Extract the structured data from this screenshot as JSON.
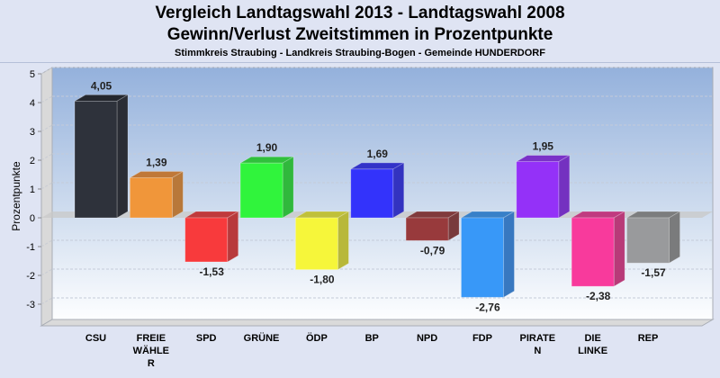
{
  "chart_data": {
    "type": "bar",
    "title": "Vergleich Landtagswahl 2013 - Landtagswahl 2008",
    "subtitle": "Gewinn/Verlust Zweitstimmen in Prozentpunkte",
    "subtitle2": "Stimmkreis Straubing - Landkreis Straubing-Bogen - Gemeinde HUNDERDORF",
    "xlabel": "",
    "ylabel": "Prozentpunkte",
    "ylim": [
      -3.75,
      5
    ],
    "yticks": [
      "5",
      "4",
      "3",
      "2",
      "1",
      "0",
      "-1",
      "-2",
      "-3"
    ],
    "ytick_values": [
      5,
      4,
      3,
      2,
      1,
      0,
      -1,
      -2,
      -3
    ],
    "grid": true,
    "categories": [
      "CSU",
      "FREIE WÄHLER",
      "SPD",
      "GRÜNE",
      "ÖDP",
      "BP",
      "NPD",
      "FDP",
      "PIRATEN",
      "DIE LINKE",
      "REP"
    ],
    "category_display": [
      [
        "CSU"
      ],
      [
        "FREIE",
        "WÄHLE",
        "R"
      ],
      [
        "SPD"
      ],
      [
        "GRÜNE"
      ],
      [
        "ÖDP"
      ],
      [
        "BP"
      ],
      [
        "NPD"
      ],
      [
        "FDP"
      ],
      [
        "PIRATE",
        "N"
      ],
      [
        "DIE",
        "LINKE"
      ],
      [
        "REP"
      ]
    ],
    "values": [
      4.05,
      1.39,
      -1.53,
      1.9,
      -1.8,
      1.69,
      -0.79,
      -2.76,
      1.95,
      -2.38,
      -1.57
    ],
    "value_labels": [
      "4,05",
      "1,39",
      "-1,53",
      "1,90",
      "-1,80",
      "1,69",
      "-0,79",
      "-2,76",
      "1,95",
      "-2,38",
      "-1,57"
    ],
    "colors": [
      "#2e323b",
      "#f0963a",
      "#f83a3c",
      "#30f43c",
      "#f6f63a",
      "#3333fb",
      "#983a3c",
      "#3898f8",
      "#9431f8",
      "#f83a9c",
      "#999a9c"
    ],
    "side_colors": [
      "#2a2d35",
      "#b8783a",
      "#b83a3c",
      "#30b83c",
      "#b8b83a",
      "#3333c0",
      "#783a3c",
      "#3878c0",
      "#7431c0",
      "#b83a78",
      "#7a7b7c"
    ],
    "top_colors": [
      "#24272e",
      "#c07838",
      "#c03a3c",
      "#30c03c",
      "#c0c03a",
      "#3333c8",
      "#803a3c",
      "#3880c8",
      "#7a31c8",
      "#c03a80",
      "#7c7d7e"
    ]
  }
}
